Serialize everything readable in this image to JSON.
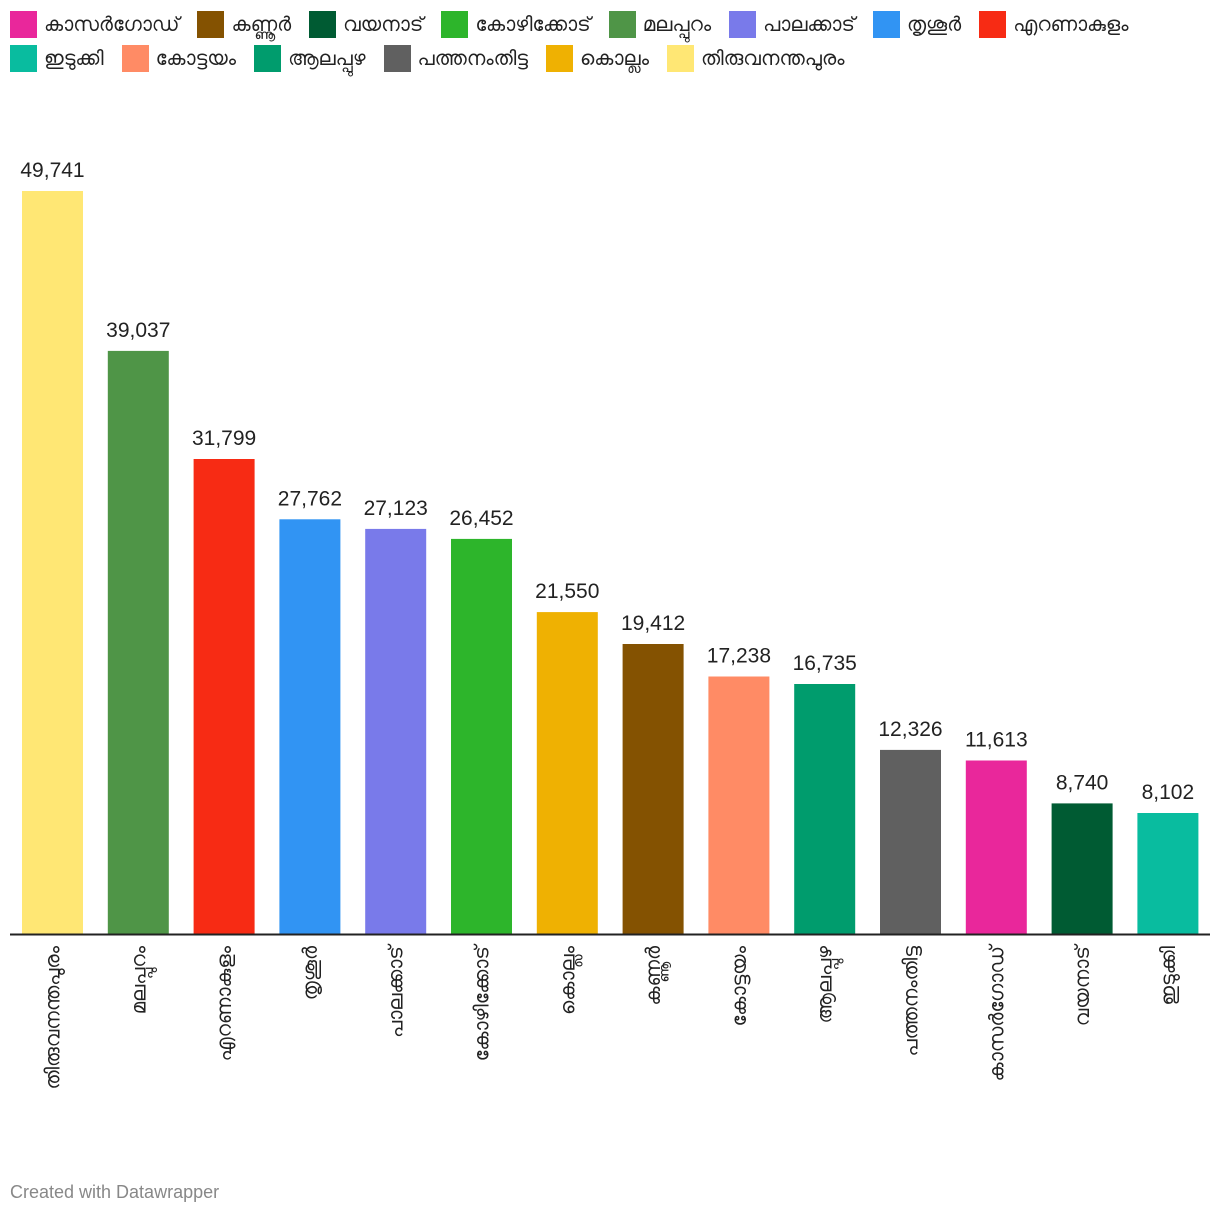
{
  "chart_data": {
    "type": "bar",
    "categories": [
      "തിരുവനന്തപുരം",
      "മലപ്പുറം",
      "എറണാകുളം",
      "തൃശൂർ",
      "പാലക്കാട്",
      "കോഴിക്കോട്",
      "കൊല്ലം",
      "കണ്ണൂർ",
      "കോട്ടയം",
      "ആലപ്പുഴ",
      "പത്തനംതിട്ട",
      "കാസർഗോഡ്",
      "വയനാട്",
      "ഇടുക്കി"
    ],
    "values": [
      49741,
      39037,
      31799,
      27762,
      27123,
      26452,
      21550,
      19412,
      17238,
      16735,
      12326,
      11613,
      8740,
      8102
    ],
    "value_labels": [
      "49,741",
      "39,037",
      "31,799",
      "27,762",
      "27,123",
      "26,452",
      "21,550",
      "19,412",
      "17,238",
      "16,735",
      "12,326",
      "11,613",
      "8,740",
      "8,102"
    ],
    "colors": [
      "#ffe774",
      "#4f9547",
      "#f72b14",
      "#3194f3",
      "#797aea",
      "#2db52b",
      "#efb102",
      "#845201",
      "#ff8b65",
      "#009c6d",
      "#606060",
      "#e9279b",
      "#005b33",
      "#09bc9f"
    ],
    "title": "",
    "xlabel": "",
    "ylabel": "",
    "ylim": [
      0,
      49741
    ],
    "grid": false,
    "legend_position": "top"
  },
  "legend": [
    {
      "label": "കാസർഗോഡ്",
      "color": "#e9279b"
    },
    {
      "label": "കണ്ണൂർ",
      "color": "#845201"
    },
    {
      "label": "വയനാട്",
      "color": "#005b33"
    },
    {
      "label": "കോഴിക്കോട്",
      "color": "#2db52b"
    },
    {
      "label": "മലപ്പുറം",
      "color": "#4f9547"
    },
    {
      "label": "പാലക്കാട്",
      "color": "#797aea"
    },
    {
      "label": "തൃശൂർ",
      "color": "#3194f3"
    },
    {
      "label": "എറണാകുളം",
      "color": "#f72b14"
    },
    {
      "label": "ഇടുക്കി",
      "color": "#09bc9f"
    },
    {
      "label": "കോട്ടയം",
      "color": "#ff8b65"
    },
    {
      "label": "ആലപ്പുഴ",
      "color": "#009c6d"
    },
    {
      "label": "പത്തനംതിട്ട",
      "color": "#606060"
    },
    {
      "label": "കൊല്ലം",
      "color": "#efb102"
    },
    {
      "label": "തിരുവനന്തപുരം",
      "color": "#ffe774"
    }
  ],
  "footer": {
    "credit": "Created with Datawrapper"
  }
}
